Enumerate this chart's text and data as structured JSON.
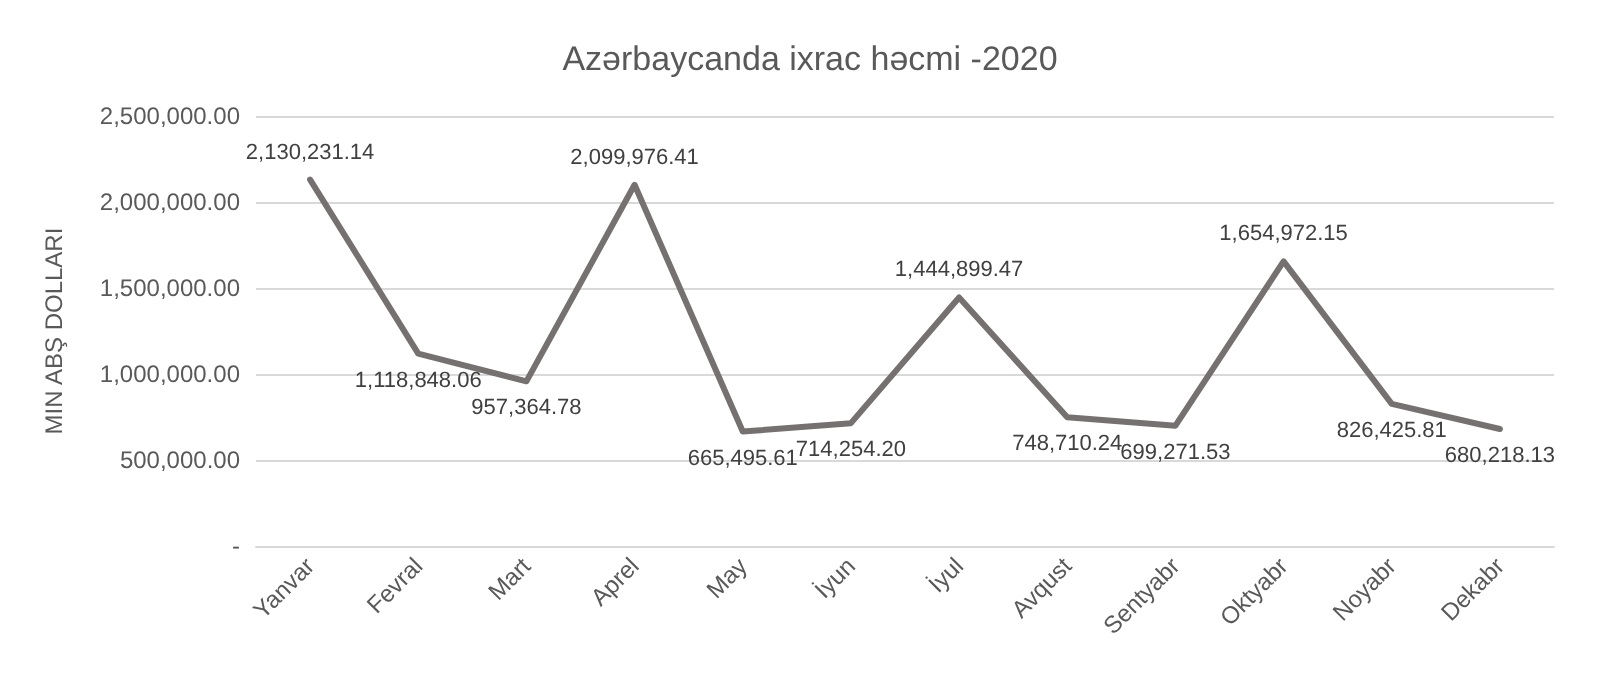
{
  "chart_data": {
    "type": "line",
    "title": "Azərbaycanda ixrac həcmi -2020",
    "ylabel": "MIN ABŞ DOLLARI",
    "categories": [
      "Yanvar",
      "Fevral",
      "Mart",
      "Aprel",
      "May",
      "İyun",
      "İyul",
      "Avqust",
      "Sentyabr",
      "Oktyabr",
      "Noyabr",
      "Dekabr"
    ],
    "series": [
      {
        "color": "#767171",
        "values": [
          2130231.14,
          1118848.06,
          957364.78,
          2099976.41,
          665495.61,
          714254.2,
          1444899.47,
          748710.24,
          699271.53,
          1654972.15,
          826425.81,
          680218.13
        ],
        "value_labels": [
          "2,130,231.14",
          "1,118,848.06",
          "957,364.78",
          "2,099,976.41",
          "665,495.61",
          "714,254.20",
          "1,444,899.47",
          "748,710.24",
          "699,271.53",
          "1,654,972.15",
          "826,425.81",
          "680,218.13"
        ]
      }
    ],
    "ylim": [
      0,
      2500000
    ],
    "yticks": [
      {
        "value": 0,
        "label": "-"
      },
      {
        "value": 500000,
        "label": "500,000.00"
      },
      {
        "value": 1000000,
        "label": "1,000,000.00"
      },
      {
        "value": 1500000,
        "label": "1,500,000.00"
      },
      {
        "value": 2000000,
        "label": "2,000,000.00"
      },
      {
        "value": 2500000,
        "label": "2,500,000.00"
      }
    ],
    "grid": "y",
    "marker": "none",
    "line_style": "solid"
  }
}
